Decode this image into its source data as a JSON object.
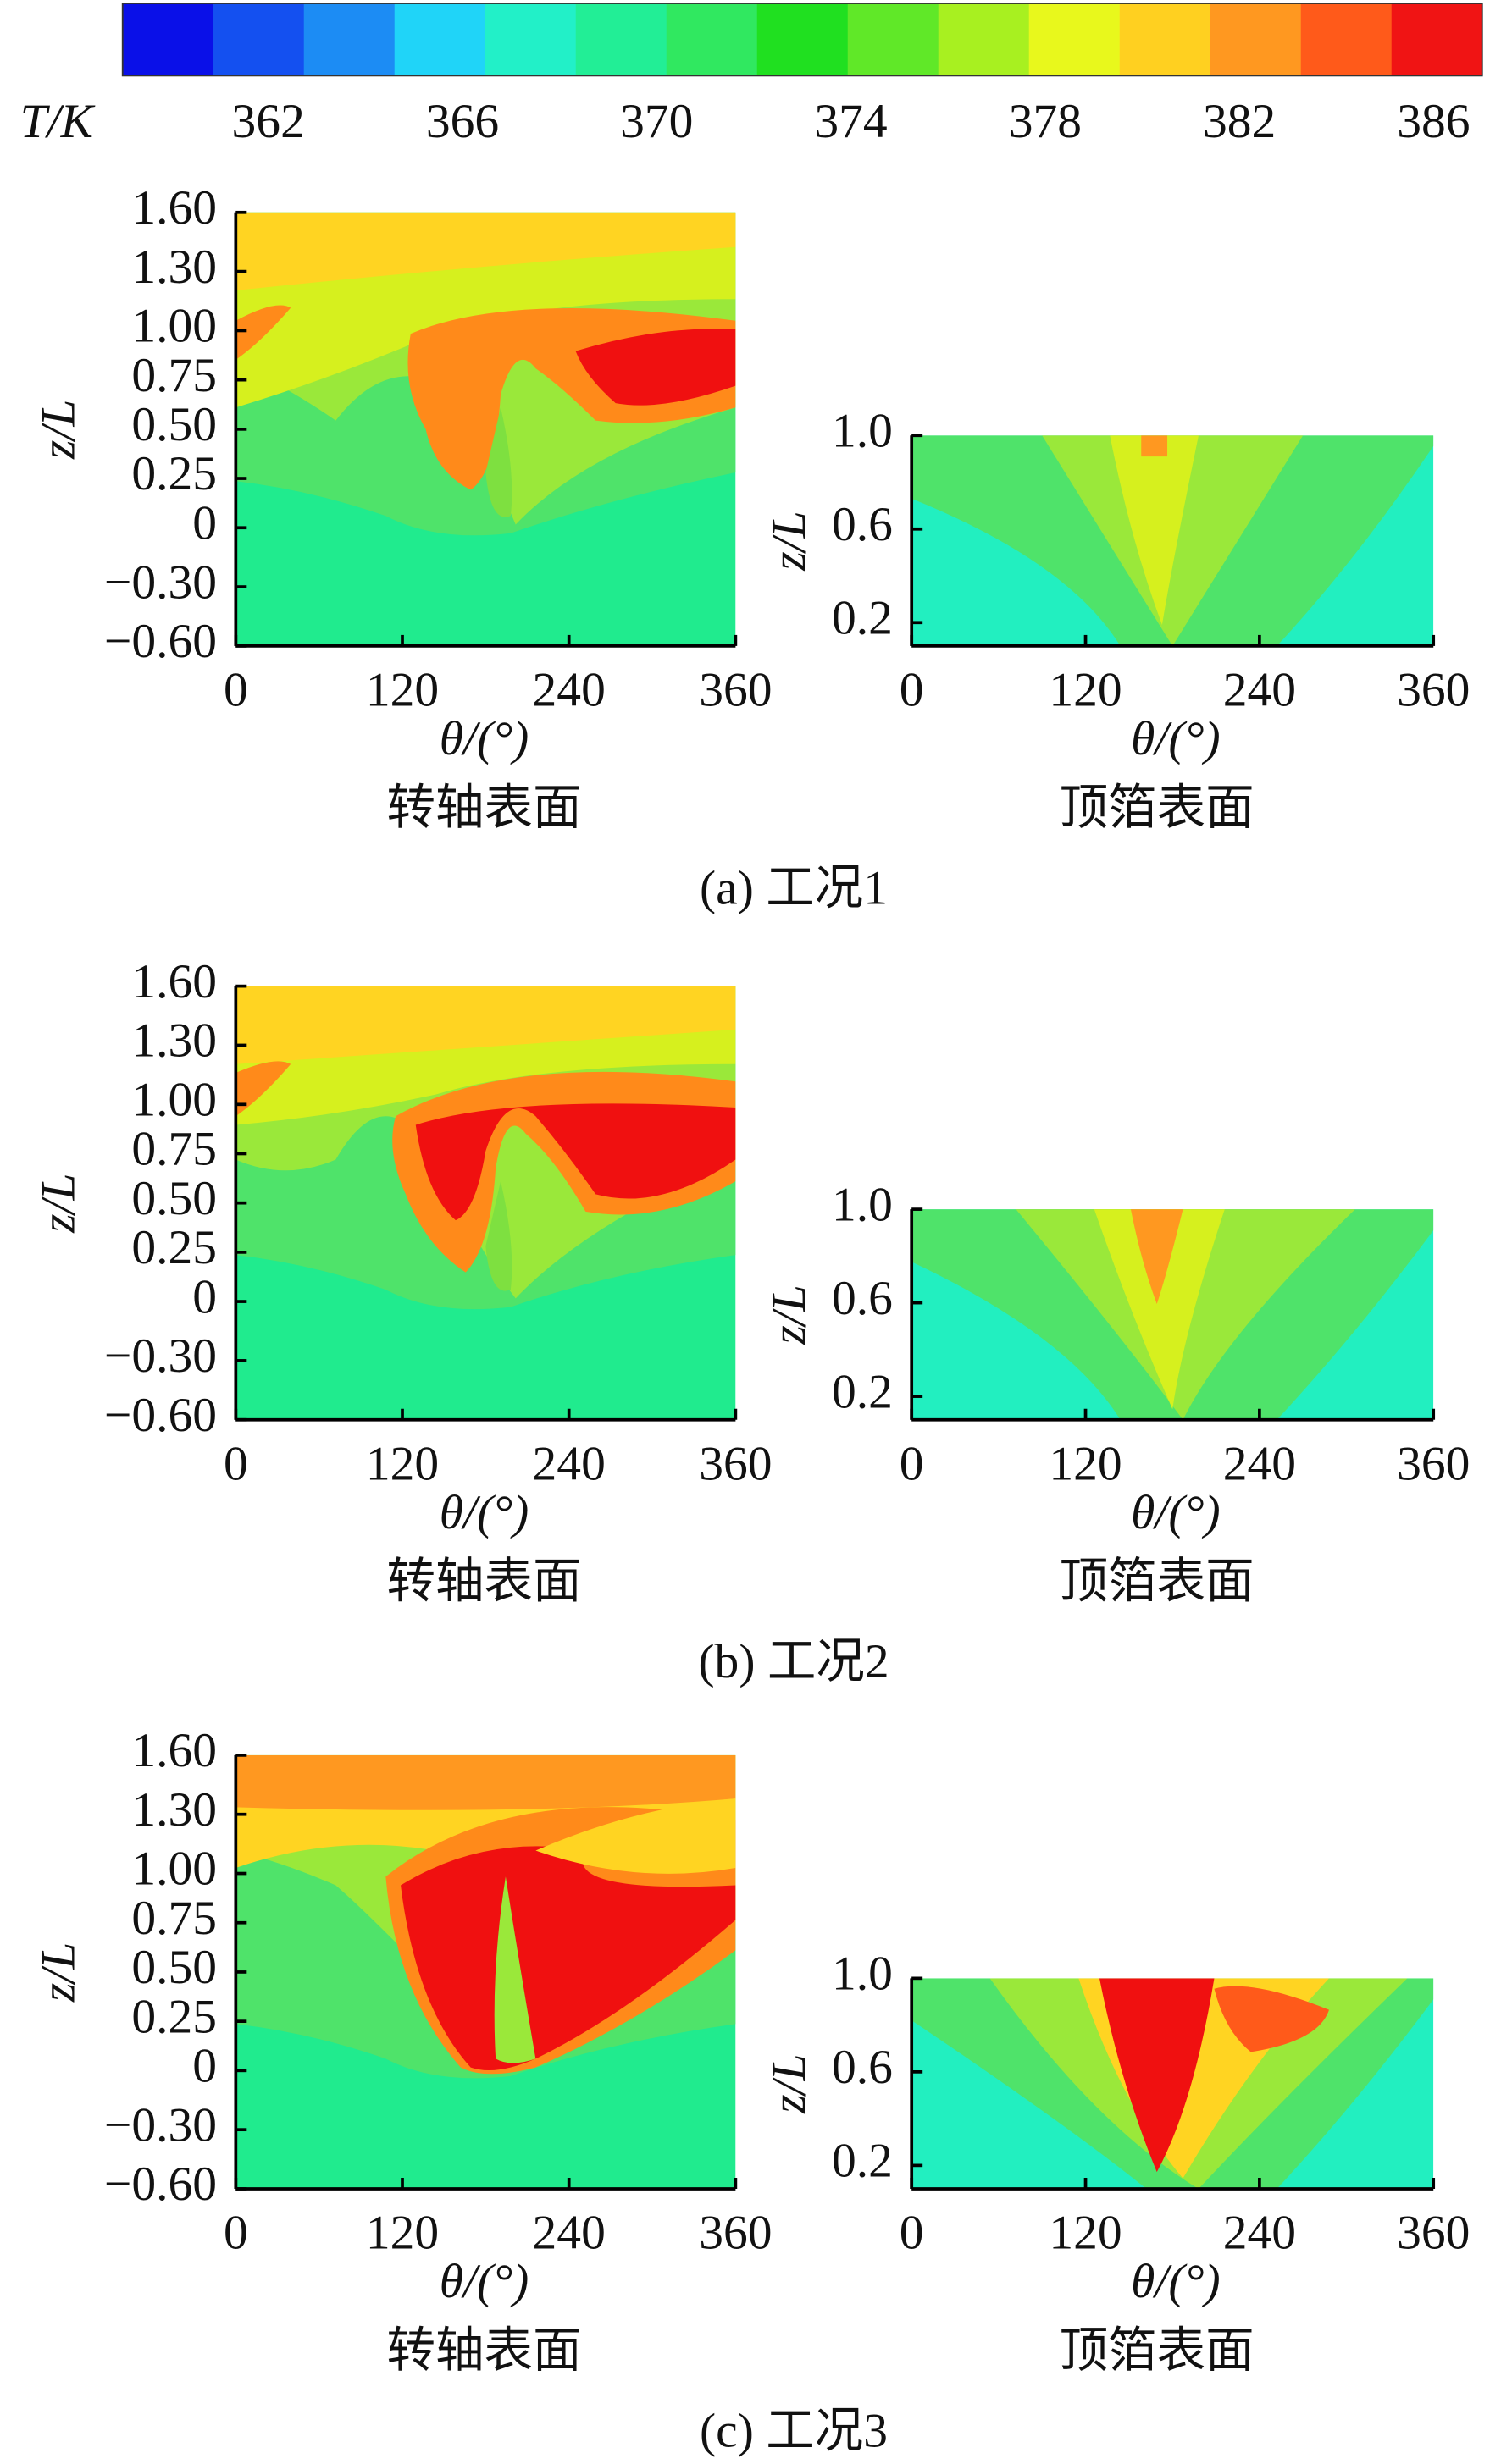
{
  "chart_data": [
    {
      "type": "colorbar",
      "label": "T/K",
      "colors": [
        "#0a10e8",
        "#1450f0",
        "#1c8cf4",
        "#20d4f8",
        "#22f0c8",
        "#22ee96",
        "#30e860",
        "#20e020",
        "#60e828",
        "#a8f020",
        "#e8f81c",
        "#ffd020",
        "#ff9820",
        "#ff5a1a",
        "#f01414"
      ],
      "xlim": [
        359,
        387
      ],
      "xticks": [
        362,
        366,
        370,
        374,
        378,
        382,
        386
      ]
    },
    {
      "type": "contour",
      "x_label": "θ/(°)",
      "y_label": "z/L",
      "caption": "转轴表面",
      "xlim": [
        0,
        360
      ],
      "xticks": [
        0,
        120,
        240,
        360
      ],
      "ylim": [
        -0.6,
        1.6
      ],
      "yticks": [
        {
          "value": 1.6,
          "label": "1.60"
        },
        {
          "value": 1.3,
          "label": "1.30"
        },
        {
          "value": 1.0,
          "label": "1.00"
        },
        {
          "value": 0.75,
          "label": "0.75"
        },
        {
          "value": 0.5,
          "label": "0.50"
        },
        {
          "value": 0.25,
          "label": "0.25"
        },
        0,
        {
          "value": -0.3,
          "label": "−0.30"
        },
        {
          "value": -0.6,
          "label": "−0.60"
        }
      ]
    },
    {
      "type": "contour",
      "x_label": "θ/(°)",
      "y_label": "z/L",
      "caption": "顶箔表面",
      "xlim": [
        0,
        360
      ],
      "xticks": [
        0,
        120,
        240,
        360
      ],
      "ylim": [
        0.1,
        1.0
      ],
      "yticks": [
        {
          "value": 1.0,
          "label": "1.0"
        },
        0.6,
        0.2
      ]
    },
    {
      "type": "contour",
      "x_label": "θ/(°)",
      "y_label": "z/L",
      "caption": "转轴表面",
      "xlim": [
        0,
        360
      ],
      "xticks": [
        0,
        120,
        240,
        360
      ],
      "ylim": [
        -0.6,
        1.6
      ],
      "yticks": [
        {
          "value": 1.6,
          "label": "1.60"
        },
        {
          "value": 1.3,
          "label": "1.30"
        },
        {
          "value": 1.0,
          "label": "1.00"
        },
        {
          "value": 0.75,
          "label": "0.75"
        },
        {
          "value": 0.5,
          "label": "0.50"
        },
        {
          "value": 0.25,
          "label": "0.25"
        },
        0,
        {
          "value": -0.3,
          "label": "−0.30"
        },
        {
          "value": -0.6,
          "label": "−0.60"
        }
      ]
    },
    {
      "type": "contour",
      "x_label": "θ/(°)",
      "y_label": "z/L",
      "caption": "顶箔表面",
      "xlim": [
        0,
        360
      ],
      "xticks": [
        0,
        120,
        240,
        360
      ],
      "ylim": [
        0.1,
        1.0
      ],
      "yticks": [
        {
          "value": 1.0,
          "label": "1.0"
        },
        0.6,
        0.2
      ]
    },
    {
      "type": "contour",
      "x_label": "θ/(°)",
      "y_label": "z/L",
      "caption": "转轴表面",
      "xlim": [
        0,
        360
      ],
      "xticks": [
        0,
        120,
        240,
        360
      ],
      "ylim": [
        -0.6,
        1.6
      ],
      "yticks": [
        {
          "value": 1.6,
          "label": "1.60"
        },
        {
          "value": 1.3,
          "label": "1.30"
        },
        {
          "value": 1.0,
          "label": "1.00"
        },
        {
          "value": 0.75,
          "label": "0.75"
        },
        {
          "value": 0.5,
          "label": "0.50"
        },
        {
          "value": 0.25,
          "label": "0.25"
        },
        0,
        {
          "value": -0.3,
          "label": "−0.30"
        },
        {
          "value": -0.6,
          "label": "−0.60"
        }
      ]
    },
    {
      "type": "contour",
      "x_label": "θ/(°)",
      "y_label": "z/L",
      "caption": "顶箔表面",
      "xlim": [
        0,
        360
      ],
      "xticks": [
        0,
        120,
        240,
        360
      ],
      "ylim": [
        0.1,
        1.0
      ],
      "yticks": [
        {
          "value": 1.0,
          "label": "1.0"
        },
        0.6,
        0.2
      ]
    }
  ],
  "panel_captions": [
    "(a) 工况1",
    "(b) 工况2",
    "(c) 工况3"
  ]
}
